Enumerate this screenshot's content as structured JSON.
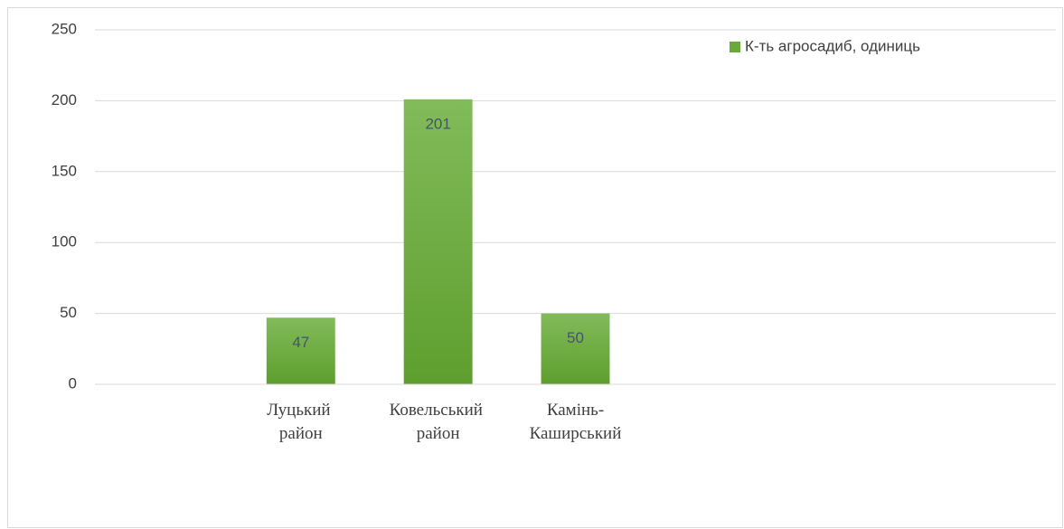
{
  "chart_data": {
    "type": "bar",
    "categories": [
      null,
      "Луцький район",
      "Ковельський район",
      "Камінь-Каширський",
      null,
      null,
      null
    ],
    "series": [
      {
        "name": "К-ть агросадиб, одиниць",
        "color": "#6aaa3a",
        "values": [
          null,
          47,
          201,
          50,
          null,
          null,
          null
        ]
      }
    ],
    "ylim": [
      0,
      250
    ],
    "yticks": [
      0,
      50,
      100,
      150,
      200,
      250
    ],
    "grid": true,
    "legend": "top-right",
    "data_labels": true
  }
}
